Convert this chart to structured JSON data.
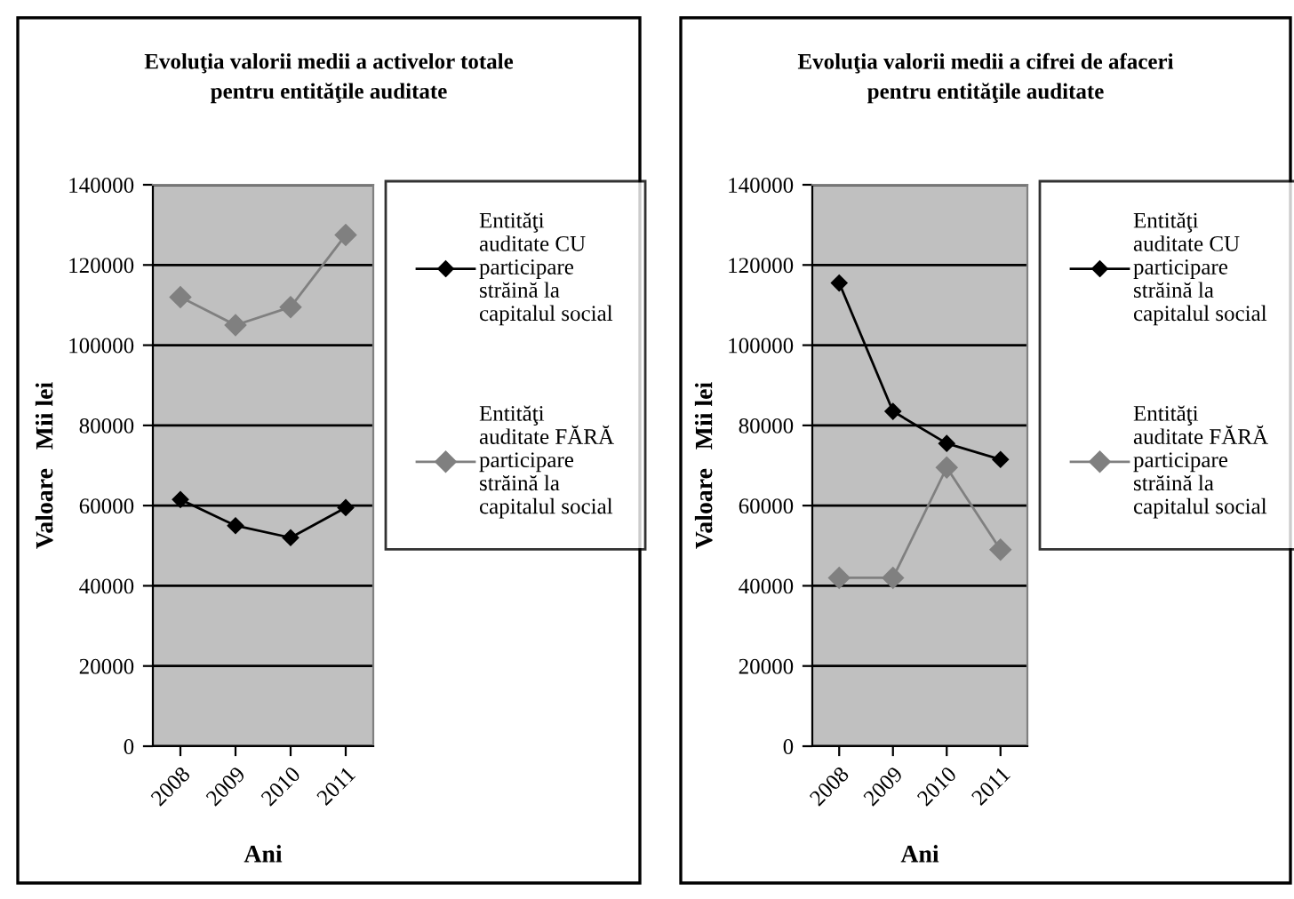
{
  "chart_data": [
    {
      "type": "line",
      "title": "Evoluţia valorii medii a activelor totale pentru entităţile auditate",
      "xlabel": "Ani",
      "ylabel": "Valoare   Mii lei",
      "categories": [
        "2008",
        "2009",
        "2010",
        "2011"
      ],
      "series": [
        {
          "name": "Entităţi auditate CU participare străină la capitalul social",
          "color": "#000000",
          "values": [
            61500,
            55000,
            52000,
            59500
          ]
        },
        {
          "name": "Entităţi auditate FĂRĂ participare străină la capitalul social",
          "color": "#808080",
          "values": [
            112000,
            105000,
            109500,
            127500
          ]
        }
      ],
      "ylim": [
        0,
        140000
      ],
      "yticks": [
        0,
        20000,
        40000,
        60000,
        80000,
        100000,
        120000,
        140000
      ],
      "grid": "y",
      "legend": "right",
      "marker": "diamond"
    },
    {
      "type": "line",
      "title": "Evoluţia valorii medii a cifrei de afaceri pentru entităţile auditate",
      "xlabel": "Ani",
      "ylabel": "Valoare   Mii lei",
      "categories": [
        "2008",
        "2009",
        "2010",
        "2011"
      ],
      "series": [
        {
          "name": "Entităţi auditate CU participare străină la capitalul social",
          "color": "#000000",
          "values": [
            115500,
            83500,
            75500,
            71500
          ]
        },
        {
          "name": "Entităţi auditate FĂRĂ participare străină la capitalul social",
          "color": "#808080",
          "values": [
            42000,
            42000,
            69500,
            49000
          ]
        }
      ],
      "ylim": [
        0,
        140000
      ],
      "yticks": [
        0,
        20000,
        40000,
        60000,
        80000,
        100000,
        120000,
        140000
      ],
      "grid": "y",
      "legend": "right",
      "marker": "diamond"
    }
  ]
}
